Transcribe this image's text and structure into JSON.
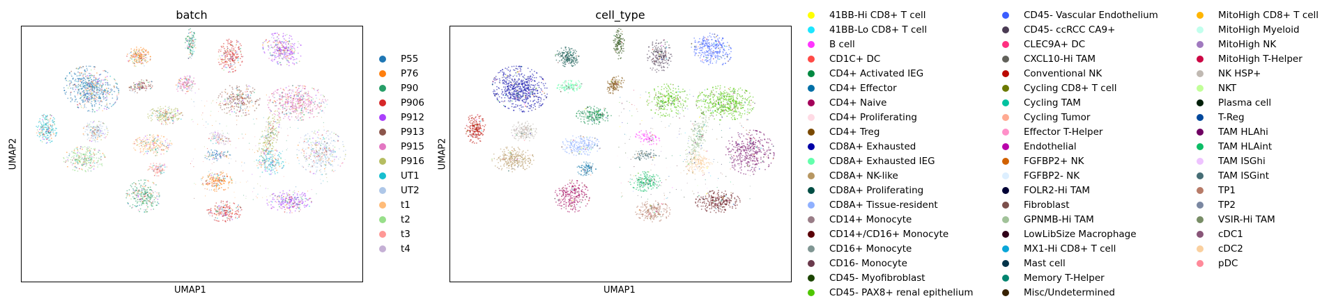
{
  "chart_data": [
    {
      "type": "scatter",
      "title": "batch",
      "xlabel": "UMAP1",
      "ylabel": "UMAP2",
      "xticks": [],
      "yticks": [],
      "legend_position": "right",
      "series": [
        {
          "name": "P55",
          "color": "#1f77b4"
        },
        {
          "name": "P76",
          "color": "#ff7f0e"
        },
        {
          "name": "P90",
          "color": "#279e68"
        },
        {
          "name": "P906",
          "color": "#d62728"
        },
        {
          "name": "P912",
          "color": "#aa40fc"
        },
        {
          "name": "P913",
          "color": "#8c564b"
        },
        {
          "name": "P915",
          "color": "#e377c2"
        },
        {
          "name": "P916",
          "color": "#b5bd61"
        },
        {
          "name": "UT1",
          "color": "#17becf"
        },
        {
          "name": "UT2",
          "color": "#aec7e8"
        },
        {
          "name": "t1",
          "color": "#ffbb78"
        },
        {
          "name": "t2",
          "color": "#98df8a"
        },
        {
          "name": "t3",
          "color": "#ff9896"
        },
        {
          "name": "t4",
          "color": "#c5b0d5"
        }
      ]
    },
    {
      "type": "scatter",
      "title": "cell_type",
      "xlabel": "UMAP1",
      "ylabel": "UMAP2",
      "xticks": [],
      "yticks": [],
      "legend_position": "right",
      "series": [
        {
          "name": "41BB-Hi CD8+ T cell",
          "color": "#ffff00"
        },
        {
          "name": "41BB-Lo CD8+ T cell",
          "color": "#1ce6ff"
        },
        {
          "name": "B cell",
          "color": "#ff34ff"
        },
        {
          "name": "CD1C+ DC",
          "color": "#ff4a46"
        },
        {
          "name": "CD4+ Activated IEG",
          "color": "#008941"
        },
        {
          "name": "CD4+ Effector",
          "color": "#006fa6"
        },
        {
          "name": "CD4+ Naive",
          "color": "#a30059"
        },
        {
          "name": "CD4+ Proliferating",
          "color": "#ffdbe5"
        },
        {
          "name": "CD4+ Treg",
          "color": "#7a4900"
        },
        {
          "name": "CD8A+ Exhausted",
          "color": "#0000a6"
        },
        {
          "name": "CD8A+ Exhausted IEG",
          "color": "#63ffac"
        },
        {
          "name": "CD8A+ NK-like",
          "color": "#b79762"
        },
        {
          "name": "CD8A+ Proliferating",
          "color": "#004d43"
        },
        {
          "name": "CD8A+ Tissue-resident",
          "color": "#8fb0ff"
        },
        {
          "name": "CD14+ Monocyte",
          "color": "#997d87"
        },
        {
          "name": "CD14+/CD16+ Monocyte",
          "color": "#5a0007"
        },
        {
          "name": "CD16+ Monocyte",
          "color": "#809693"
        },
        {
          "name": "CD16- Monocyte",
          "color": "#6a3a4c"
        },
        {
          "name": "CD45- Myofibroblast",
          "color": "#1b4400"
        },
        {
          "name": "CD45- PAX8+ renal epithelium",
          "color": "#4fc601"
        },
        {
          "name": "CD45- Vascular Endothelium",
          "color": "#3b5dff"
        },
        {
          "name": "CD45- ccRCC CA9+",
          "color": "#4a3b53"
        },
        {
          "name": "CLEC9A+ DC",
          "color": "#ff2f80"
        },
        {
          "name": "CXCL10-Hi TAM",
          "color": "#61615a"
        },
        {
          "name": "Conventional NK",
          "color": "#ba0900"
        },
        {
          "name": "Cycling CD8+ T cell",
          "color": "#6b7900"
        },
        {
          "name": "Cycling TAM",
          "color": "#00c2a0"
        },
        {
          "name": "Cycling Tumor",
          "color": "#ffaa92"
        },
        {
          "name": "Effector T-Helper",
          "color": "#ff90c9"
        },
        {
          "name": "Endothelial",
          "color": "#b903aa"
        },
        {
          "name": "FGFBP2+ NK",
          "color": "#d16100"
        },
        {
          "name": "FGFBP2- NK",
          "color": "#ddefff"
        },
        {
          "name": "FOLR2-Hi TAM",
          "color": "#000035"
        },
        {
          "name": "Fibroblast",
          "color": "#7b4f4b"
        },
        {
          "name": "GPNMB-Hi TAM",
          "color": "#a1c299"
        },
        {
          "name": "LowLibSize Macrophage",
          "color": "#300018"
        },
        {
          "name": "MX1-Hi CD8+ T cell",
          "color": "#0aa6d8"
        },
        {
          "name": "Mast cell",
          "color": "#013349"
        },
        {
          "name": "Memory T-Helper",
          "color": "#00846f"
        },
        {
          "name": "Misc/Undetermined",
          "color": "#372101"
        },
        {
          "name": "MitoHigh CD8+ T cell",
          "color": "#ffb500"
        },
        {
          "name": "MitoHigh Myeloid",
          "color": "#c2ffed"
        },
        {
          "name": "MitoHigh NK",
          "color": "#a079bf"
        },
        {
          "name": "MitoHigh T-Helper",
          "color": "#cc0744"
        },
        {
          "name": "NK HSP+",
          "color": "#c0b9b2"
        },
        {
          "name": "NKT",
          "color": "#c2ff99"
        },
        {
          "name": "Plasma cell",
          "color": "#001e09"
        },
        {
          "name": "T-Reg",
          "color": "#00489c"
        },
        {
          "name": "TAM HLAhi",
          "color": "#6f0062"
        },
        {
          "name": "TAM HLAint",
          "color": "#0cbd66"
        },
        {
          "name": "TAM ISGhi",
          "color": "#eec3ff"
        },
        {
          "name": "TAM ISGint",
          "color": "#456d75"
        },
        {
          "name": "TP1",
          "color": "#b77b68"
        },
        {
          "name": "TP2",
          "color": "#7a87a1"
        },
        {
          "name": "VSIR-Hi TAM",
          "color": "#788d66"
        },
        {
          "name": "cDC1",
          "color": "#885578"
        },
        {
          "name": "cDC2",
          "color": "#fad09f"
        },
        {
          "name": "pDC",
          "color": "#ff8a9a"
        }
      ]
    }
  ]
}
